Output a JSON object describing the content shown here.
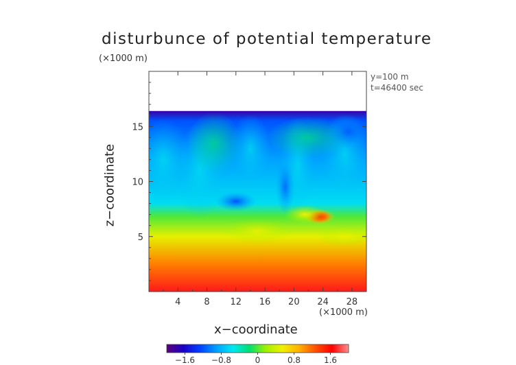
{
  "chart_data": {
    "type": "heatmap",
    "title": "disturbunce of potential temperature",
    "z_unit": "(×1000 m)",
    "x_unit": "(×1000 m)",
    "xlabel": "x−coordinate",
    "ylabel": "z−coordinate",
    "annotations": [
      "y=100 m",
      "t=46400 sec"
    ],
    "xlim": [
      0,
      30
    ],
    "ylim": [
      0,
      20
    ],
    "x_ticks": [
      4,
      8,
      12,
      16,
      20,
      24,
      28
    ],
    "x_tick_labels": [
      "4",
      "8",
      "12",
      "16",
      "20",
      "24",
      "28"
    ],
    "y_ticks": [
      5,
      10,
      15
    ],
    "y_tick_labels": [
      "5",
      "10",
      "15"
    ],
    "data_top_z": 16.4,
    "colorbar": {
      "range": [
        -2.0,
        2.0
      ],
      "ticks": [
        -1.6,
        -0.8,
        0,
        0.8,
        1.6
      ],
      "tick_labels": [
        "−1.6",
        "−0.8",
        "0",
        "0.8",
        "1.6"
      ],
      "colors": [
        "#5a007a",
        "#1a00c8",
        "#0040ff",
        "#00a0ff",
        "#00e8f0",
        "#00e070",
        "#a0f000",
        "#f0f000",
        "#ffb000",
        "#ff5000",
        "#ff0000",
        "#ff9090"
      ]
    },
    "field_description_levels": [
      {
        "z": 16.4,
        "value": -1.8
      },
      {
        "z": 15.5,
        "value": -1.2
      },
      {
        "z": 12.0,
        "value": -0.9
      },
      {
        "z": 8.0,
        "value": -0.6
      },
      {
        "z": 6.8,
        "value": 0.0
      },
      {
        "z": 5.0,
        "value": 0.5
      },
      {
        "z": 2.5,
        "value": 1.1
      },
      {
        "z": 0.0,
        "value": 1.7
      }
    ],
    "features": [
      {
        "x": 23.5,
        "z": 6.8,
        "value": 1.6
      },
      {
        "x": 21.5,
        "z": 7.0,
        "value": 0.9
      },
      {
        "x": 12.0,
        "z": 8.2,
        "value": -1.1
      }
    ]
  }
}
